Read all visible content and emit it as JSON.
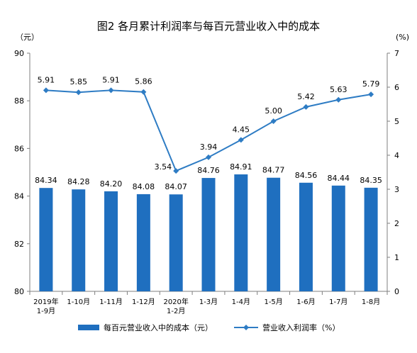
{
  "chart_data": {
    "type": "bar+line",
    "title": "图2  各月累计利润率与每百元营业收入中的成本",
    "categories": [
      "2019年\n1-9月",
      "1-10月",
      "1-11月",
      "1-12月",
      "2020年\n1-2月",
      "1-3月",
      "1-4月",
      "1-5月",
      "1-6月",
      "1-7月",
      "1-8月"
    ],
    "left_axis": {
      "unit": "（元）",
      "ylim": [
        80,
        90
      ],
      "ticks": [
        "80",
        "82",
        "84",
        "86",
        "88",
        "90"
      ]
    },
    "right_axis": {
      "unit": "(%)",
      "ylim": [
        0,
        7
      ],
      "ticks": [
        "0",
        "1",
        "2",
        "3",
        "4",
        "5",
        "6",
        "7"
      ]
    },
    "series": [
      {
        "name": "每百元营业收入中的成本（元）",
        "type": "bar",
        "axis": "left",
        "color": "#1f6fbf",
        "values": [
          84.34,
          84.28,
          84.2,
          84.08,
          84.07,
          84.76,
          84.91,
          84.77,
          84.56,
          84.44,
          84.35
        ],
        "labels": [
          "84.34",
          "84.28",
          "84.20",
          "84.08",
          "84.07",
          "84.76",
          "84.91",
          "84.77",
          "84.56",
          "84.44",
          "84.35"
        ]
      },
      {
        "name": "营业收入利润率（%）",
        "type": "line",
        "axis": "right",
        "color": "#2e7cc4",
        "values": [
          5.91,
          5.85,
          5.91,
          5.86,
          3.54,
          3.94,
          4.45,
          5.0,
          5.42,
          5.63,
          5.79
        ],
        "labels": [
          "5.91",
          "5.85",
          "5.91",
          "5.86",
          "3.54",
          "3.94",
          "4.45",
          "5.00",
          "5.42",
          "5.63",
          "5.79"
        ]
      }
    ],
    "legend_position": "bottom",
    "grid": false
  }
}
